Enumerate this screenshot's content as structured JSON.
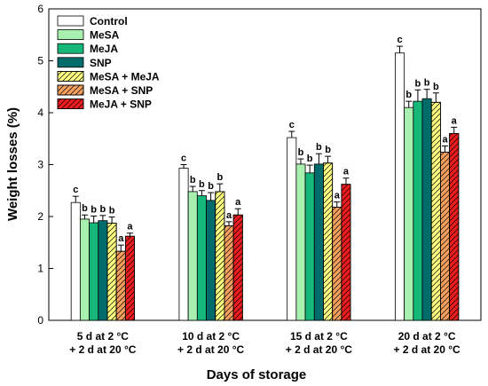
{
  "chart_data": {
    "type": "bar",
    "xlabel": "Days of storage",
    "ylabel": "Weight losses (%)",
    "ylim": [
      0,
      6
    ],
    "yticks": [
      "0",
      "1",
      "2",
      "3",
      "4",
      "5",
      "6"
    ],
    "grid": false,
    "legend_position": "top-left",
    "categories": [
      {
        "line1": "5 d at 2 °C",
        "line2": "+ 2 d at 20 °C"
      },
      {
        "line1": "10 d at 2 °C",
        "line2": "+ 2 d at 20 °C"
      },
      {
        "line1": "15 d at 2 °C",
        "line2": "+ 2 d at 20 °C"
      },
      {
        "line1": "20 d at 2 °C",
        "line2": "+ 2 d at 20 °C"
      }
    ],
    "series": [
      {
        "name": "Control",
        "color": "#ffffff",
        "hatch": false,
        "values": [
          2.27,
          2.93,
          3.52,
          5.15
        ],
        "errors": [
          0.12,
          0.07,
          0.12,
          0.13
        ],
        "letters": [
          "c",
          "c",
          "c",
          "c"
        ]
      },
      {
        "name": "MeSA",
        "color": "#a8f0b0",
        "hatch": false,
        "values": [
          1.95,
          2.48,
          3.01,
          4.1
        ],
        "errors": [
          0.08,
          0.1,
          0.1,
          0.12
        ],
        "letters": [
          "b",
          "b",
          "b",
          "b"
        ]
      },
      {
        "name": "MeJA",
        "color": "#16b87a",
        "hatch": false,
        "values": [
          1.88,
          2.4,
          2.84,
          4.22
        ],
        "errors": [
          0.13,
          0.1,
          0.15,
          0.22
        ],
        "letters": [
          "b",
          "b",
          "b",
          "b"
        ]
      },
      {
        "name": "SNP",
        "color": "#006b6b",
        "hatch": false,
        "values": [
          1.92,
          2.31,
          3.01,
          4.27
        ],
        "errors": [
          0.1,
          0.15,
          0.2,
          0.18
        ],
        "letters": [
          "b",
          "b",
          "b",
          "b"
        ]
      },
      {
        "name": "MeSA + MeJA",
        "color": "#ffff80",
        "hatch": true,
        "values": [
          1.87,
          2.48,
          3.03,
          4.2
        ],
        "errors": [
          0.12,
          0.15,
          0.13,
          0.18
        ],
        "letters": [
          "b",
          "b",
          "b",
          "b"
        ]
      },
      {
        "name": "MeSA + SNP",
        "color": "#f7a05e",
        "hatch": true,
        "values": [
          1.33,
          1.82,
          2.18,
          3.24
        ],
        "errors": [
          0.12,
          0.08,
          0.1,
          0.12
        ],
        "letters": [
          "a",
          "a",
          "a",
          "a"
        ]
      },
      {
        "name": "MeJA + SNP",
        "color": "#ee1c1c",
        "hatch": true,
        "values": [
          1.62,
          2.03,
          2.62,
          3.6
        ],
        "errors": [
          0.06,
          0.12,
          0.12,
          0.12
        ],
        "letters": [
          "a",
          "a",
          "a",
          "a"
        ]
      }
    ]
  }
}
